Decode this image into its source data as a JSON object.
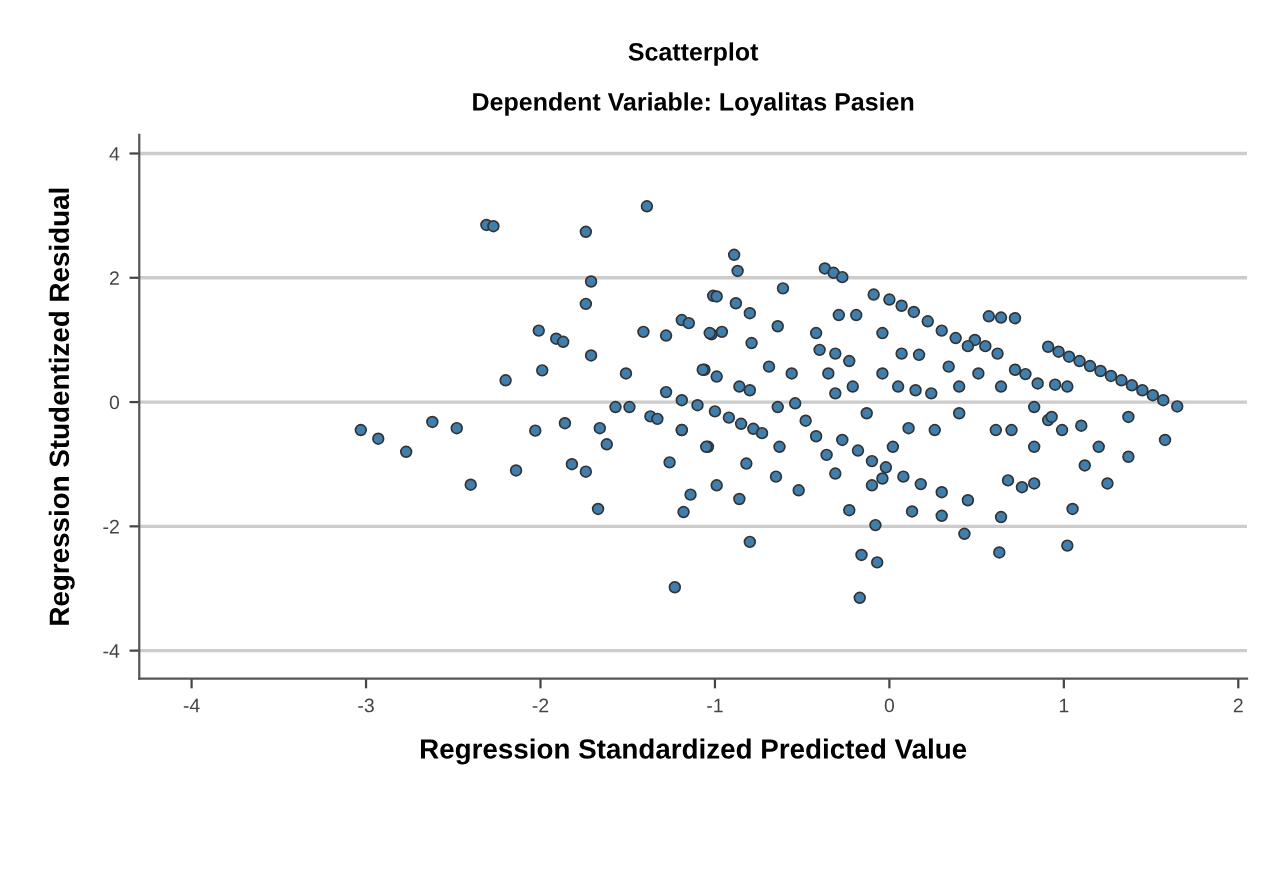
{
  "chart_data": {
    "type": "scatter",
    "title": "Scatterplot",
    "subtitle": "Dependent Variable: Loyalitas Pasien",
    "xlabel": "Regression Standardized Predicted Value",
    "ylabel": "Regression Studentized Residual",
    "xlim": [
      -4.3,
      2.05
    ],
    "ylim": [
      -4.45,
      4.3
    ],
    "xticks": [
      -4,
      -3,
      -2,
      -1,
      0,
      1,
      2
    ],
    "yticks": [
      -4,
      -2,
      0,
      2,
      4
    ],
    "grid": "y",
    "marker": "circle",
    "series": [
      {
        "color": "#3f7fae",
        "x": [
          -3.03,
          -2.93,
          -2.77,
          -2.62,
          -2.48,
          -2.4,
          -2.31,
          -2.27,
          -2.2,
          -2.14,
          -2.03,
          -2.01,
          -1.99,
          -1.91,
          -1.87,
          -1.86,
          -1.82,
          -1.74,
          -1.74,
          -1.71,
          -1.71,
          -1.74,
          -1.67,
          -1.66,
          -1.62,
          -1.57,
          -1.49,
          -1.51,
          -1.39,
          -1.41,
          -1.37,
          -1.33,
          -1.28,
          -1.28,
          -1.26,
          -1.19,
          -1.15,
          -1.19,
          -1.14,
          -1.18,
          -1.23,
          -1.04,
          -1.02,
          -1.01,
          -1.06,
          -0.89,
          -0.87,
          -0.61,
          -0.37,
          -0.32,
          -0.27,
          -0.09,
          -1.03,
          -0.96,
          -0.99,
          -0.88,
          -0.8,
          -0.64,
          -1.07,
          -0.99,
          -0.86,
          -0.8,
          -0.79,
          -0.69,
          -0.56,
          -0.42,
          -0.4,
          -0.31,
          -0.29,
          -0.19,
          -0.35,
          -0.23,
          -0.31,
          -0.21,
          -0.64,
          -0.63,
          -1.05,
          -1.19,
          -0.82,
          -0.65,
          -0.99,
          -0.86,
          -0.8,
          -0.52,
          -0.23,
          -0.1,
          -0.08,
          -0.16,
          -0.07,
          -0.17,
          -0.13,
          -0.04,
          0.05,
          0.15,
          -0.04,
          0.07,
          0.17,
          0.24,
          0.34,
          0.51,
          0.4,
          0.61,
          0.7,
          0.64,
          0.83,
          0.68,
          0.76,
          0.83,
          0.64,
          0.63,
          0.43,
          0.3,
          0.13,
          -0.04,
          0.02,
          0.11,
          0.26,
          0.91,
          0.99,
          1.1,
          1.2,
          1.12,
          1.25,
          1.37,
          1.37,
          1.58,
          1.05,
          1.02,
          0.83,
          0.93,
          0.4,
          0.91,
          0.97,
          1.03,
          1.09,
          1.15,
          1.21,
          1.27,
          1.33,
          1.39,
          1.45,
          1.51,
          1.57,
          1.65,
          0.57,
          0.64,
          0.72,
          0.49,
          0.55,
          0.62,
          0.72,
          0.78,
          0.85,
          0.95,
          1.02,
          0.0,
          0.07,
          0.14,
          0.22,
          0.3,
          0.38,
          0.45,
          -1.19,
          -1.1,
          -1.0,
          -0.92,
          -0.85,
          -0.78,
          -0.73,
          -0.54,
          -0.48,
          -0.42,
          -0.36,
          -0.31,
          -0.27,
          -0.18,
          -0.1,
          -0.02,
          0.08,
          0.18,
          0.3,
          0.45
        ],
        "values": [
          -0.45,
          -0.59,
          -0.8,
          -0.32,
          -0.42,
          -1.33,
          2.85,
          2.83,
          0.35,
          -1.1,
          -0.46,
          1.15,
          0.51,
          1.02,
          0.97,
          -0.34,
          -1.0,
          2.74,
          1.58,
          1.94,
          0.75,
          -1.12,
          -1.72,
          -0.42,
          -0.68,
          -0.08,
          -0.08,
          0.46,
          3.15,
          1.13,
          -0.23,
          -0.27,
          0.16,
          1.07,
          -0.97,
          1.32,
          1.27,
          -0.45,
          -1.49,
          -1.77,
          -2.98,
          -0.72,
          1.09,
          1.71,
          0.52,
          2.37,
          2.11,
          1.83,
          2.15,
          2.08,
          2.01,
          1.73,
          1.11,
          1.13,
          1.7,
          1.59,
          1.43,
          1.22,
          0.52,
          0.41,
          0.25,
          0.19,
          0.95,
          0.57,
          0.46,
          1.11,
          0.84,
          0.78,
          1.4,
          1.4,
          0.46,
          0.66,
          0.14,
          0.25,
          -0.08,
          -0.72,
          -0.72,
          -0.45,
          -0.99,
          -1.2,
          -1.34,
          -1.56,
          -2.25,
          -1.42,
          -1.74,
          -1.34,
          -1.98,
          -2.46,
          -2.58,
          -3.15,
          -0.18,
          0.46,
          0.25,
          0.19,
          1.11,
          0.78,
          0.76,
          0.14,
          0.57,
          0.46,
          -0.18,
          -0.45,
          -0.45,
          0.25,
          -0.72,
          -1.26,
          -1.37,
          -1.31,
          -1.85,
          -2.42,
          -2.12,
          -1.83,
          -1.76,
          -1.23,
          -0.72,
          -0.42,
          -0.45,
          -0.29,
          -0.45,
          -0.38,
          -0.72,
          -1.02,
          -1.31,
          -0.24,
          -0.88,
          -0.61,
          -1.72,
          -2.31,
          -0.08,
          -0.24,
          0.25,
          0.89,
          0.81,
          0.73,
          0.66,
          0.58,
          0.5,
          0.42,
          0.35,
          0.27,
          0.19,
          0.11,
          0.03,
          -0.07,
          1.38,
          1.36,
          1.35,
          1.0,
          0.9,
          0.78,
          0.52,
          0.45,
          0.3,
          0.28,
          0.25,
          1.65,
          1.55,
          1.45,
          1.3,
          1.15,
          1.03,
          0.9,
          0.03,
          -0.05,
          -0.15,
          -0.25,
          -0.35,
          -0.43,
          -0.5,
          -0.02,
          -0.3,
          -0.55,
          -0.85,
          -1.15,
          -0.61,
          -0.78,
          -0.95,
          -1.05,
          -1.2,
          -1.32,
          -1.45,
          -1.58
        ]
      }
    ]
  }
}
